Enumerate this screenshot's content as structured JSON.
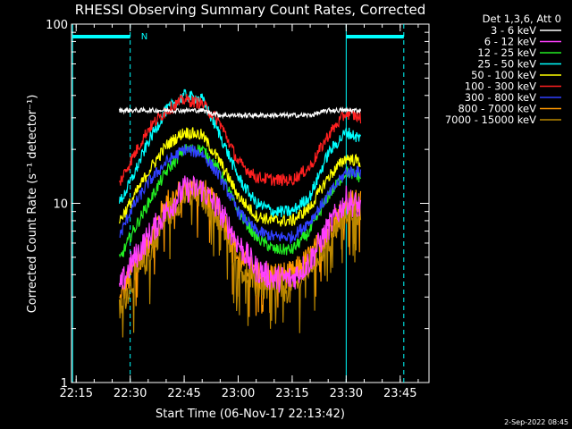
{
  "chart_data": {
    "type": "line",
    "title": "RHESSI Observing Summary Count Rates, Corrected",
    "xlabel": "Start Time (06-Nov-17 22:13:42)",
    "ylabel": "Corrected Count Rate (s⁻¹ detector⁻¹)",
    "y_scale": "log",
    "ylim": [
      1,
      100
    ],
    "xlim": [
      "22:13:42",
      "23:53"
    ],
    "grid": false,
    "x_ticks": [
      "22:15",
      "22:30",
      "22:45",
      "23:00",
      "23:15",
      "23:30",
      "23:45"
    ],
    "y_ticks": [
      "1",
      "10",
      "100"
    ],
    "legend": {
      "title": "Det 1,3,6, Att 0",
      "placement": "outside-right"
    },
    "annotations": [
      {
        "text": "N",
        "x": "22:32"
      }
    ],
    "night_bars": [
      {
        "from": "22:14",
        "to": "22:30"
      },
      {
        "from": "23:30",
        "to": "23:46"
      }
    ],
    "vertical_lines": [
      {
        "x": "22:14",
        "style": "solid"
      },
      {
        "x": "22:30",
        "style": "dashed"
      },
      {
        "x": "23:30",
        "style": "solid"
      },
      {
        "x": "23:46",
        "style": "dashed"
      }
    ],
    "data_window": {
      "from": "22:27",
      "to": "23:34"
    },
    "x_samples": [
      "22:27",
      "22:30",
      "22:35",
      "22:40",
      "22:45",
      "22:50",
      "22:55",
      "23:00",
      "23:05",
      "23:10",
      "23:15",
      "23:20",
      "23:25",
      "23:30",
      "23:34"
    ],
    "series": [
      {
        "name": "3 - 6 keV",
        "color": "#ffffff",
        "values": [
          33,
          33,
          33,
          33,
          33,
          33,
          31,
          31,
          31,
          31,
          31,
          31,
          33,
          33,
          33
        ]
      },
      {
        "name": "6 - 12 keV",
        "color": "#ff40ff",
        "values": [
          3.3,
          4.5,
          6.5,
          9,
          12,
          12,
          9,
          6,
          4.3,
          3.8,
          3.8,
          4.8,
          7.3,
          10.5,
          9.5
        ]
      },
      {
        "name": "12 - 25 keV",
        "color": "#22ee22",
        "values": [
          4.8,
          6.5,
          10,
          15,
          20,
          20,
          15,
          9,
          6.5,
          5.5,
          5.5,
          7,
          11,
          15,
          14
        ]
      },
      {
        "name": "25 - 50 keV",
        "color": "#00ffff",
        "values": [
          10,
          13,
          22,
          33,
          40,
          38,
          24,
          14,
          10,
          9,
          9,
          11,
          19,
          25,
          23
        ]
      },
      {
        "name": "50 - 100 keV",
        "color": "#ffff00",
        "values": [
          8,
          10,
          15,
          21,
          25,
          24,
          17,
          11,
          8.5,
          8,
          8,
          9.5,
          14,
          18,
          17
        ]
      },
      {
        "name": "100 - 300 keV",
        "color": "#ff2020",
        "values": [
          13,
          17,
          26,
          33,
          38,
          36,
          28,
          17,
          14,
          13.5,
          13.5,
          16,
          24,
          32,
          30
        ]
      },
      {
        "name": "300 - 800 keV",
        "color": "#3040ff",
        "values": [
          6.5,
          9,
          13,
          17,
          20,
          19,
          14,
          9,
          7,
          6.5,
          6.5,
          8,
          11,
          15,
          15
        ]
      },
      {
        "name": "800 - 7000 keV",
        "color": "#ff9900",
        "values": [
          2.8,
          4,
          6,
          10,
          12,
          12,
          9,
          5,
          4,
          4,
          4,
          5,
          7,
          10,
          10
        ]
      },
      {
        "name": "7000 - 15000 keV",
        "color": "#bb8800",
        "values": [
          2.5,
          3.5,
          5,
          8.5,
          11,
          11,
          8,
          4.5,
          3.5,
          3.3,
          3.3,
          4.5,
          6,
          9,
          9
        ]
      }
    ]
  },
  "footer": {
    "timestamp": "2-Sep-2022 08:45"
  }
}
